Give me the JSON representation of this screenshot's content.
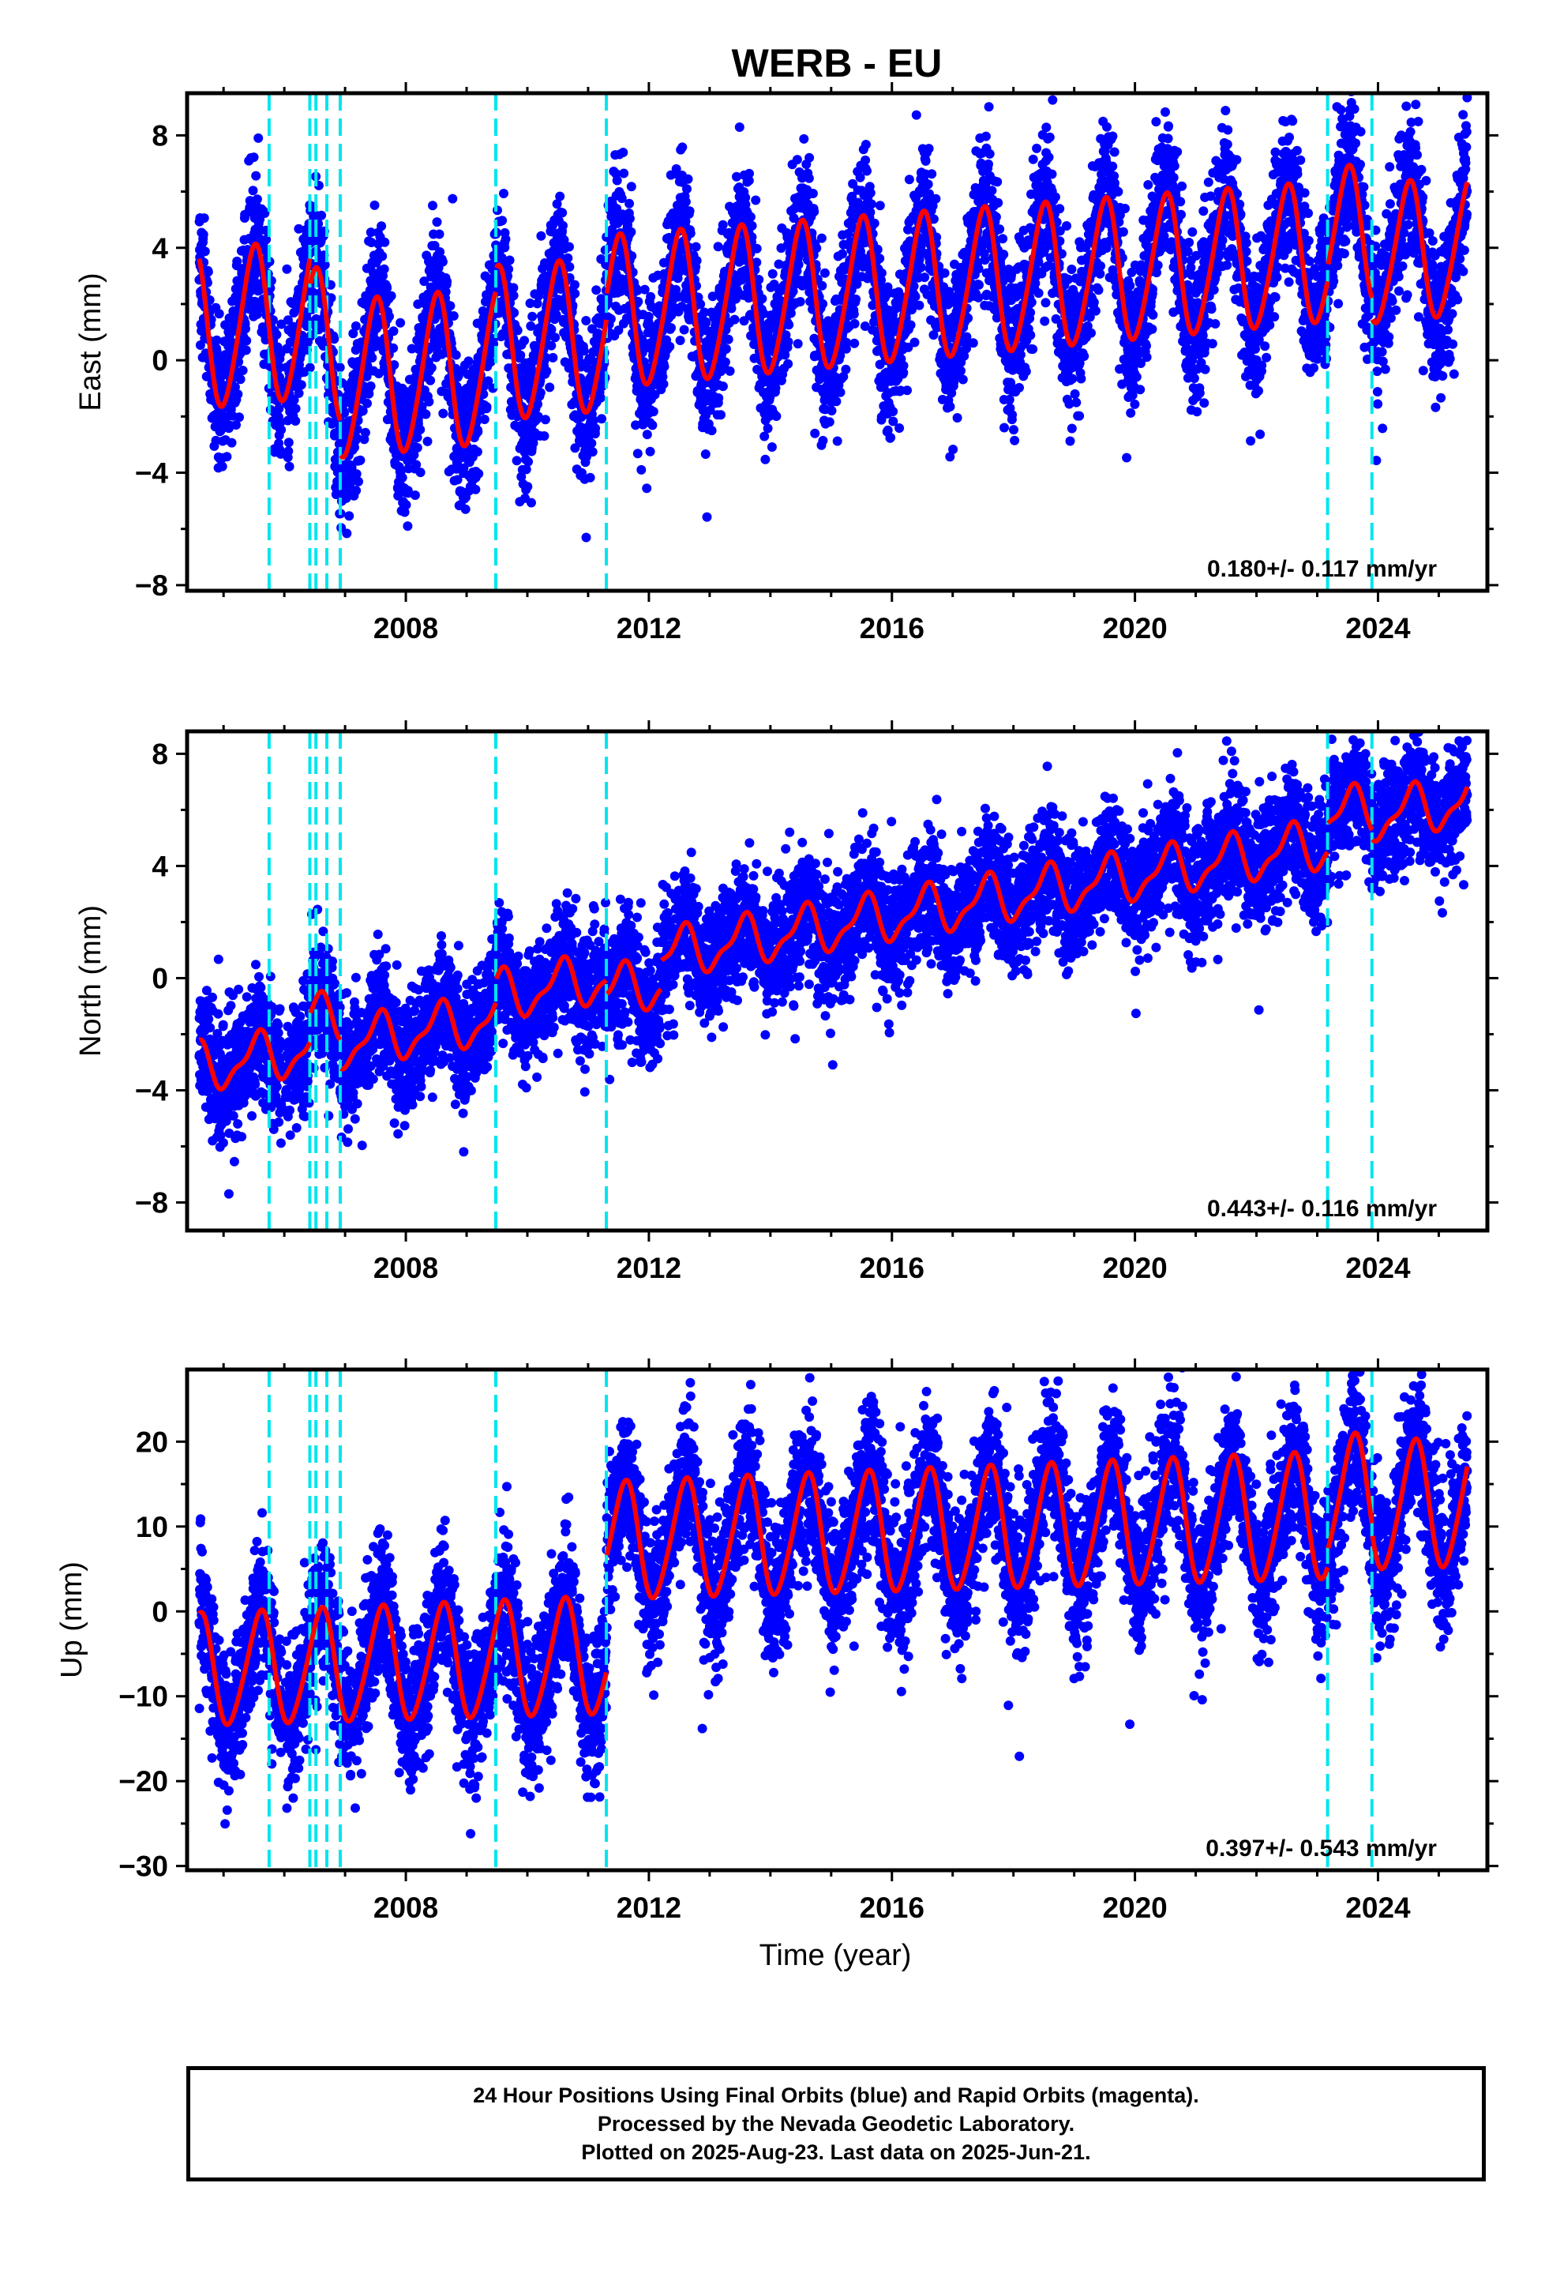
{
  "title": "WERB - EU",
  "xlabel": "Time (year)",
  "colors": {
    "points": "#0000ff",
    "fit": "#ff0000",
    "offsets": "#00e5ee",
    "frame": "#000000"
  },
  "caption": [
    "24 Hour Positions Using Final Orbits (blue) and Rapid Orbits (magenta).",
    "Processed by the Nevada Geodetic Laboratory.",
    "Plotted on 2025-Aug-23. Last data on 2025-Jun-21."
  ],
  "chart_data": [
    {
      "type": "scatter",
      "name": "east",
      "ylabel": "East (mm)",
      "xlim": [
        2004.4,
        2025.8
      ],
      "ylim": [
        -8.2,
        9.5
      ],
      "xticks": [
        2008,
        2012,
        2016,
        2020,
        2024
      ],
      "yticks": [
        -8,
        -4,
        0,
        4,
        8
      ],
      "ytick_labels": [
        "−8",
        "−4",
        "0",
        "4",
        "8"
      ],
      "rate_label": "0.180+/- 0.117 mm/yr",
      "offset_years": [
        2005.75,
        2006.42,
        2006.52,
        2006.7,
        2006.92,
        2009.48,
        2011.3,
        2023.17,
        2023.9
      ],
      "model": {
        "start_year": 2004.6,
        "end_year": 2025.47,
        "base_value": 1.05,
        "rate_mm_per_yr": 0.18,
        "annual_amp_start": 2.8,
        "annual_amp_end": 2.4,
        "phase_peak_year_fraction": 0.5,
        "semiannual_amp": 0.3,
        "steps": [
          [
            2006.42,
            -1.0
          ],
          [
            2006.92,
            -1.2
          ],
          [
            2009.48,
            0.8
          ],
          [
            2011.3,
            0.8
          ],
          [
            2023.17,
            0.5
          ],
          [
            2023.9,
            -0.7
          ]
        ],
        "noise_sd": 1.25
      }
    },
    {
      "type": "scatter",
      "name": "north",
      "ylabel": "North (mm)",
      "xlim": [
        2004.4,
        2025.8
      ],
      "ylim": [
        -9.0,
        8.8
      ],
      "xticks": [
        2008,
        2012,
        2016,
        2020,
        2024
      ],
      "yticks": [
        -8,
        -4,
        0,
        4,
        8
      ],
      "ytick_labels": [
        "−8",
        "−4",
        "0",
        "4",
        "8"
      ],
      "rate_label": "0.443+/- 0.116 mm/yr",
      "offset_years": [
        2005.75,
        2006.42,
        2006.52,
        2006.7,
        2006.92,
        2009.48,
        2011.3,
        2023.17,
        2023.9
      ],
      "model": {
        "start_year": 2004.6,
        "end_year": 2025.47,
        "base_value": -3.2,
        "rate_mm_per_yr": 0.36,
        "annual_amp_start": 0.8,
        "annual_amp_end": 0.8,
        "phase_peak_year_fraction": 0.55,
        "semiannual_amp": 0.3,
        "steps": [
          [
            2006.42,
            1.0
          ],
          [
            2006.92,
            -1.0
          ],
          [
            2009.48,
            0.8
          ],
          [
            2011.3,
            -0.5
          ],
          [
            2012.2,
            1.0
          ],
          [
            2023.17,
            1.0
          ],
          [
            2023.9,
            -0.3
          ]
        ],
        "noise_sd": 1.05
      }
    },
    {
      "type": "scatter",
      "name": "up",
      "ylabel": "Up (mm)",
      "xlim": [
        2004.4,
        2025.8
      ],
      "ylim": [
        -30.5,
        28.5
      ],
      "xticks": [
        2008,
        2012,
        2016,
        2020,
        2024
      ],
      "yticks": [
        -30,
        -20,
        -10,
        0,
        10,
        20
      ],
      "ytick_labels": [
        "−30",
        "−20",
        "−10",
        "0",
        "10",
        "20"
      ],
      "rate_label": "0.397+/- 0.543 mm/yr",
      "offset_years": [
        2005.75,
        2006.42,
        2006.52,
        2006.7,
        2006.92,
        2009.48,
        2011.3,
        2023.17,
        2023.9
      ],
      "model": {
        "start_year": 2004.6,
        "end_year": 2025.47,
        "base_value": -7.0,
        "rate_mm_per_yr": 0.25,
        "annual_amp_start": 6.5,
        "annual_amp_end": 7.5,
        "phase_peak_year_fraction": 0.6,
        "semiannual_amp": 0.8,
        "steps": [
          [
            2011.3,
            13.5
          ],
          [
            2023.17,
            2.0
          ],
          [
            2023.9,
            -1.0
          ]
        ],
        "noise_sd": 4.2
      }
    }
  ]
}
